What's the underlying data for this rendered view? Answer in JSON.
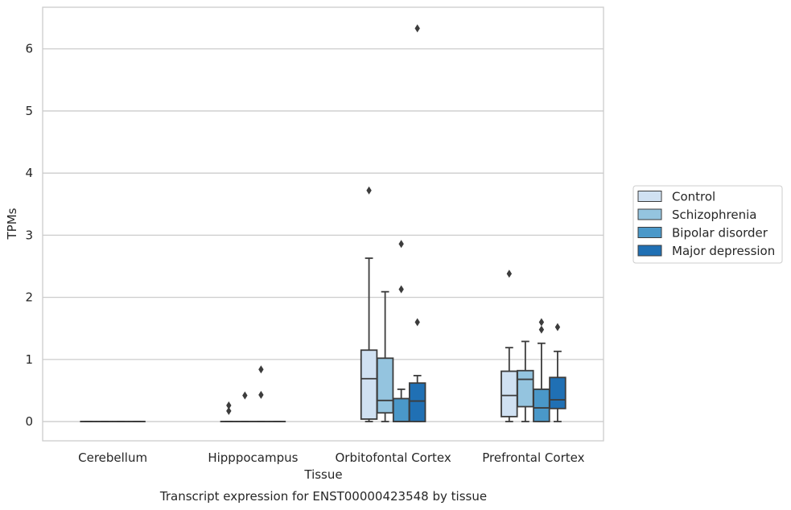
{
  "chart_data": {
    "type": "box",
    "title": "",
    "caption": "Transcript expression for ENST00000423548 by tissue",
    "xlabel": "Tissue",
    "ylabel": "TPMs",
    "ylim": [
      -0.31,
      6.67
    ],
    "yticks": [
      0,
      1,
      2,
      3,
      4,
      5,
      6
    ],
    "grid": "horizontal",
    "legend_position": "right",
    "categories": [
      "Cerebellum",
      "Hipppocampus",
      "Orbitofontal Cortex",
      "Prefrontal Cortex"
    ],
    "series": [
      {
        "name": "Control",
        "color": "#d0e1f2",
        "boxes": [
          {
            "min": 0,
            "q1": 0,
            "median": 0,
            "q3": 0,
            "max": 0,
            "outliers": []
          },
          {
            "min": 0,
            "q1": 0,
            "median": 0,
            "q3": 0,
            "max": 0,
            "outliers": [
              0.17,
              0.26
            ]
          },
          {
            "min": 0,
            "q1": 0.04,
            "median": 0.69,
            "q3": 1.15,
            "max": 2.63,
            "outliers": [
              3.72
            ]
          },
          {
            "min": 0,
            "q1": 0.08,
            "median": 0.42,
            "q3": 0.81,
            "max": 1.19,
            "outliers": [
              2.38
            ]
          }
        ]
      },
      {
        "name": "Schizophrenia",
        "color": "#94c4df",
        "boxes": [
          {
            "min": 0,
            "q1": 0,
            "median": 0,
            "q3": 0,
            "max": 0,
            "outliers": []
          },
          {
            "min": 0,
            "q1": 0,
            "median": 0,
            "q3": 0,
            "max": 0,
            "outliers": [
              0.42
            ]
          },
          {
            "min": 0,
            "q1": 0.14,
            "median": 0.34,
            "q3": 1.02,
            "max": 2.09,
            "outliers": []
          },
          {
            "min": 0,
            "q1": 0.24,
            "median": 0.68,
            "q3": 0.82,
            "max": 1.29,
            "outliers": []
          }
        ]
      },
      {
        "name": "Bipolar disorder",
        "color": "#4a98c9",
        "boxes": [
          {
            "min": 0,
            "q1": 0,
            "median": 0,
            "q3": 0,
            "max": 0,
            "outliers": []
          },
          {
            "min": 0,
            "q1": 0,
            "median": 0,
            "q3": 0,
            "max": 0,
            "outliers": [
              0.43,
              0.84
            ]
          },
          {
            "min": 0,
            "q1": 0,
            "median": 0,
            "q3": 0.37,
            "max": 0.52,
            "outliers": [
              2.13,
              2.86
            ]
          },
          {
            "min": 0,
            "q1": 0,
            "median": 0.22,
            "q3": 0.52,
            "max": 1.26,
            "outliers": [
              1.48,
              1.6
            ]
          }
        ]
      },
      {
        "name": "Major depression",
        "color": "#2070b4",
        "boxes": [
          {
            "min": 0,
            "q1": 0,
            "median": 0,
            "q3": 0,
            "max": 0,
            "outliers": []
          },
          {
            "min": 0,
            "q1": 0,
            "median": 0,
            "q3": 0,
            "max": 0,
            "outliers": []
          },
          {
            "min": 0,
            "q1": 0,
            "median": 0.33,
            "q3": 0.62,
            "max": 0.74,
            "outliers": [
              1.6,
              6.33
            ]
          },
          {
            "min": 0,
            "q1": 0.21,
            "median": 0.35,
            "q3": 0.71,
            "max": 1.13,
            "outliers": [
              1.52
            ]
          }
        ]
      }
    ]
  }
}
